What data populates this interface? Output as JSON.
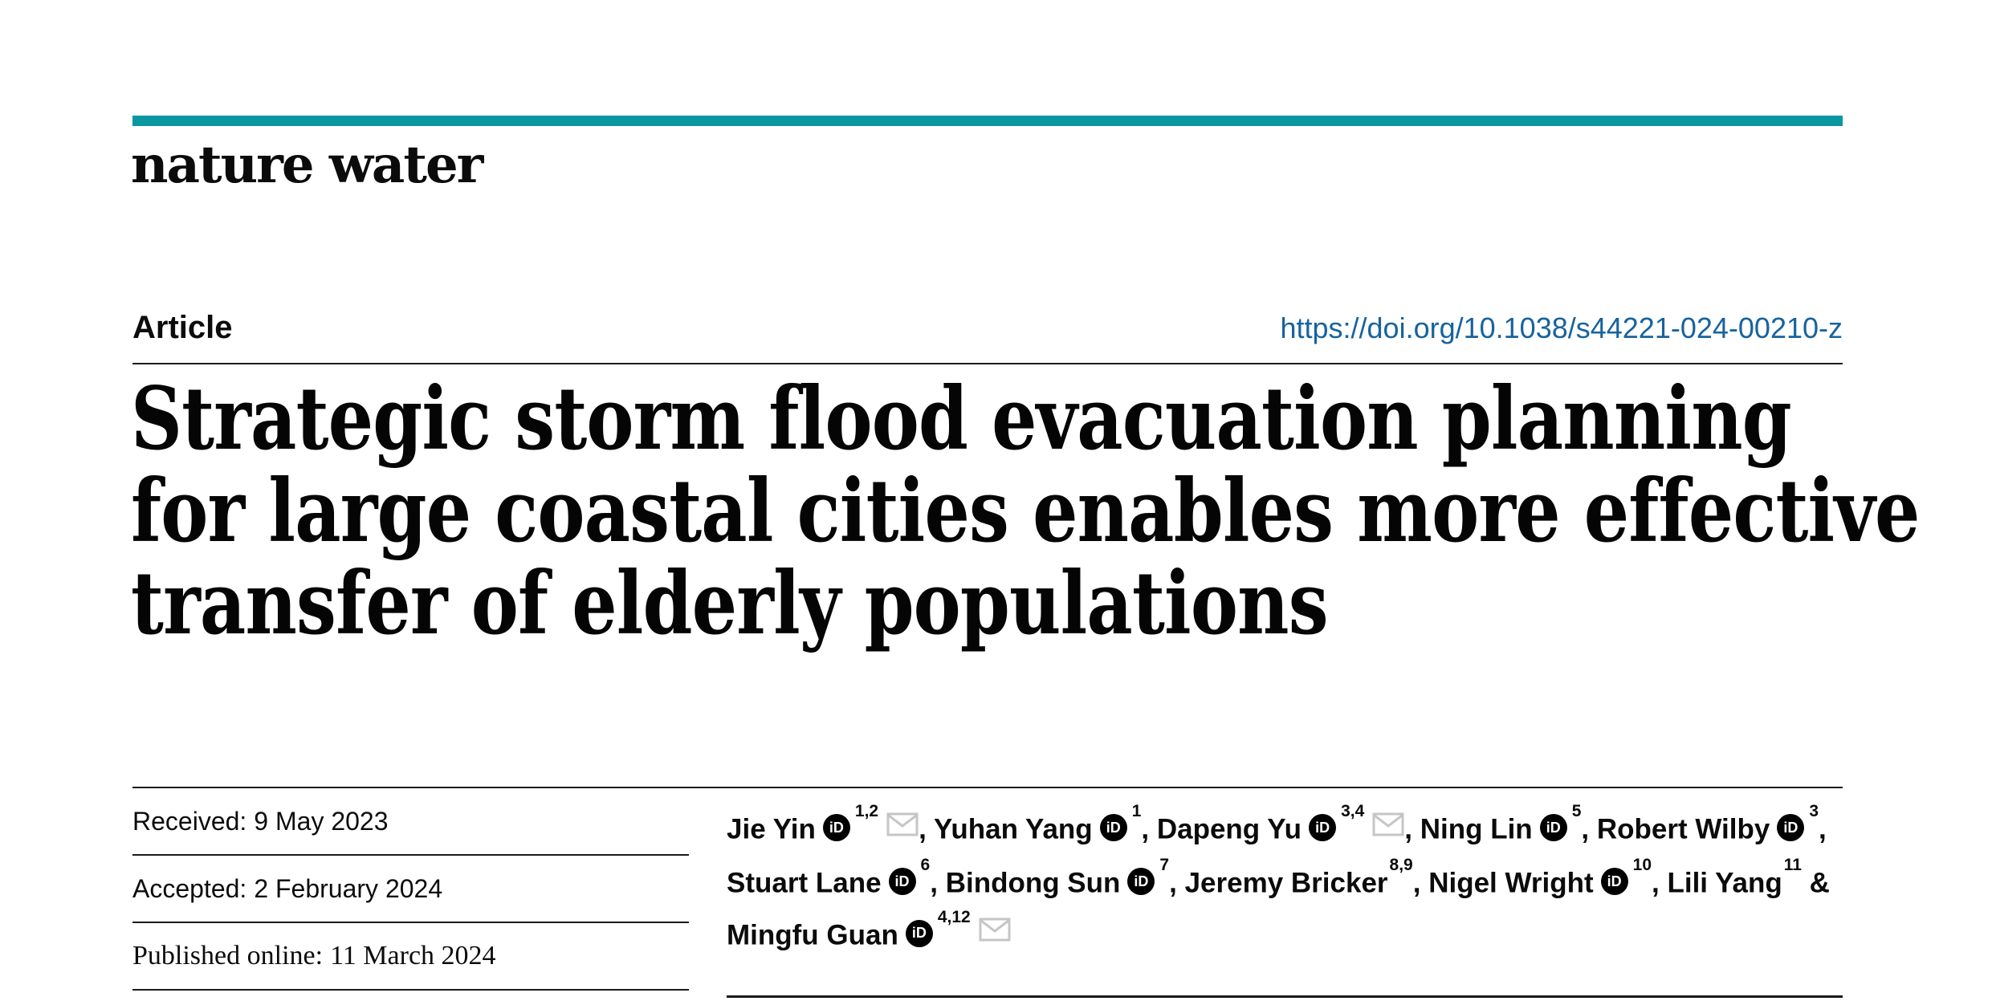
{
  "page": {
    "background": "#ffffff",
    "rule_color": "#1a1a1a"
  },
  "masthead": {
    "brand": "nature water",
    "bar_color": "#0a97a2"
  },
  "header": {
    "kicker": "Article",
    "doi": "https://doi.org/10.1038/s44221-024-00210-z",
    "doi_color": "#17639e"
  },
  "title": {
    "lines": [
      "Strategic storm flood evacuation planning",
      "for large coastal cities enables more effective",
      "transfer of elderly populations"
    ]
  },
  "dates": {
    "rows": [
      {
        "label": "Received:",
        "value": "9 May 2023",
        "style": "sans"
      },
      {
        "label": "Accepted:",
        "value": "2 February 2024",
        "style": "sans"
      },
      {
        "label": "Published online:",
        "value": "11 March 2024",
        "style": "serif"
      }
    ]
  },
  "authors": {
    "orcid_glyph": "iD",
    "separator": ", ",
    "final_separator": " &",
    "envelope_color": "#c6c6c6",
    "list": [
      {
        "name": "Jie Yin",
        "orcid": true,
        "sup": "1,2",
        "email": true
      },
      {
        "name": "Yuhan Yang",
        "orcid": true,
        "sup": "1",
        "email": false
      },
      {
        "name": "Dapeng Yu",
        "orcid": true,
        "sup": "3,4",
        "email": true
      },
      {
        "name": "Ning Lin",
        "orcid": true,
        "sup": "5",
        "email": false
      },
      {
        "name": "Robert Wilby",
        "orcid": true,
        "sup": "3",
        "email": false,
        "break_after": true
      },
      {
        "name": "Stuart Lane",
        "orcid": true,
        "sup": "6",
        "email": false
      },
      {
        "name": "Bindong Sun",
        "orcid": true,
        "sup": "7",
        "email": false
      },
      {
        "name": "Jeremy Bricker",
        "orcid": false,
        "sup": "8,9",
        "email": false
      },
      {
        "name": "Nigel Wright",
        "orcid": true,
        "sup": "10",
        "email": false
      },
      {
        "name": "Lili Yang",
        "orcid": false,
        "sup": "11",
        "email": false,
        "break_after": true
      },
      {
        "name": "Mingfu Guan",
        "orcid": true,
        "sup": "4,12",
        "email": true
      }
    ]
  }
}
